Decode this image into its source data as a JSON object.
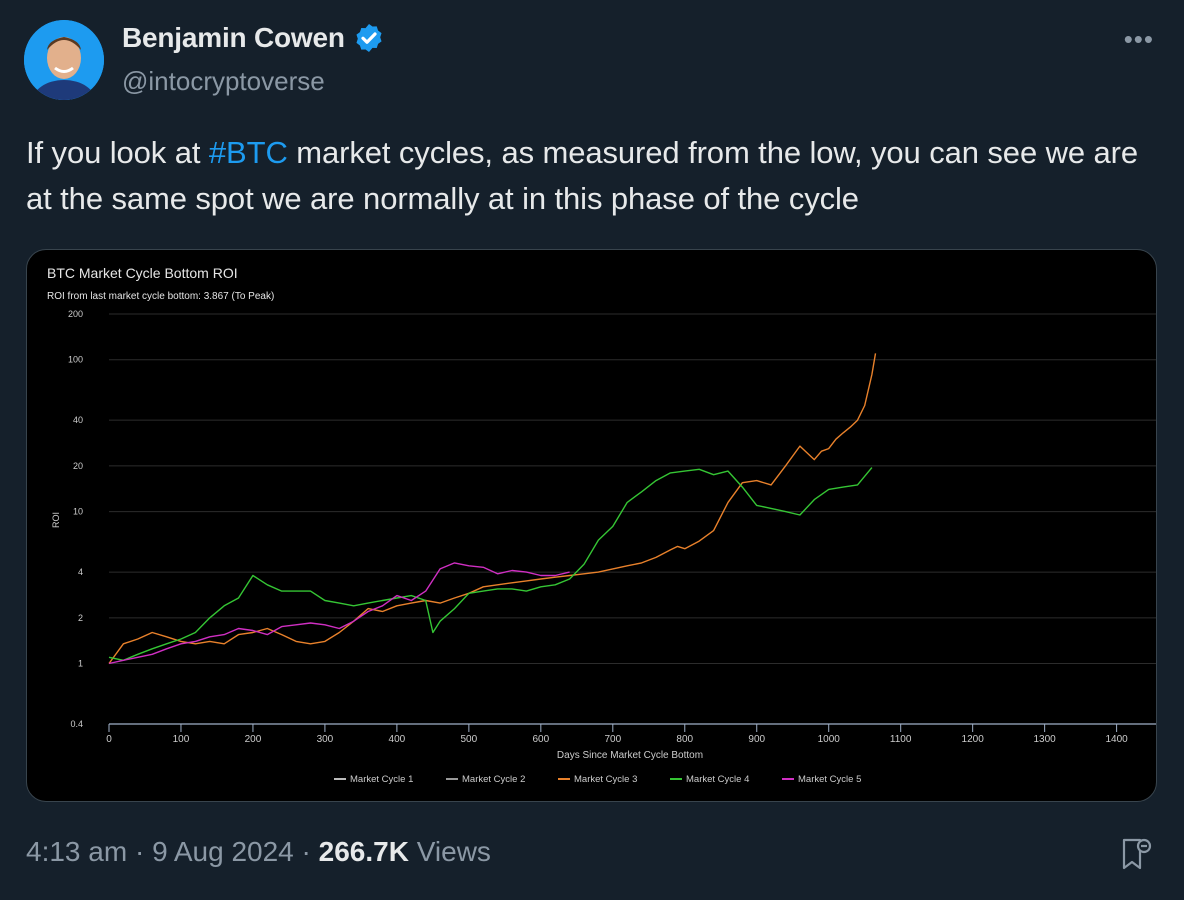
{
  "author": {
    "display_name": "Benjamin Cowen",
    "handle": "@intocryptoverse",
    "avatar_icon": "person-avatar",
    "verified_icon": "verified-badge-icon"
  },
  "more_icon": "more-options-icon",
  "tweet": {
    "text_before": "If you look at ",
    "hashtag": "#BTC",
    "text_after": " market cycles, as measured from the low, you can see we are at the same spot we are normally at in this phase of the cycle"
  },
  "meta": {
    "time": "4:13 am",
    "separator": "·",
    "date": "9 Aug 2024",
    "views_count": "266.7K",
    "views_label": "Views"
  },
  "colors": {
    "background": "#15202b",
    "accent": "#1d9bf0",
    "cycle1": "#bbbbbb",
    "cycle2": "#999999",
    "cycle3": "#e8812b",
    "cycle4": "#35c534",
    "cycle5": "#d02fc3"
  },
  "chart_data": {
    "type": "line",
    "title": "BTC Market Cycle Bottom ROI",
    "subtitle": "ROI from last market cycle bottom: 3.867 (To Peak)",
    "xlabel": "Days Since Market Cycle Bottom",
    "ylabel": "ROI",
    "y_scale": "log",
    "xlim": [
      0,
      1420
    ],
    "ylim": [
      0.4,
      200
    ],
    "x_ticks": [
      0,
      100,
      200,
      300,
      400,
      500,
      600,
      700,
      800,
      900,
      1000,
      1100,
      1200,
      1300,
      1400
    ],
    "y_ticks": [
      0.4,
      1,
      2,
      4,
      10,
      20,
      40,
      100,
      200
    ],
    "grid": true,
    "legend_position": "bottom",
    "series": [
      {
        "name": "Market Cycle 1",
        "color": "#bbbbbb",
        "x": [],
        "y": []
      },
      {
        "name": "Market Cycle 2",
        "color": "#999999",
        "x": [],
        "y": []
      },
      {
        "name": "Market Cycle 3",
        "color": "#e8812b",
        "x": [
          0,
          20,
          40,
          60,
          80,
          100,
          120,
          140,
          160,
          180,
          200,
          220,
          240,
          260,
          280,
          300,
          320,
          340,
          360,
          380,
          400,
          420,
          440,
          460,
          480,
          500,
          520,
          540,
          560,
          580,
          600,
          620,
          640,
          660,
          680,
          700,
          720,
          740,
          760,
          780,
          790,
          800,
          820,
          840,
          860,
          880,
          900,
          920,
          940,
          960,
          980,
          990,
          1000,
          1010,
          1020,
          1030,
          1040,
          1050,
          1060,
          1065
        ],
        "y": [
          1.0,
          1.35,
          1.45,
          1.6,
          1.5,
          1.4,
          1.35,
          1.4,
          1.35,
          1.55,
          1.6,
          1.7,
          1.55,
          1.4,
          1.35,
          1.4,
          1.6,
          1.9,
          2.3,
          2.2,
          2.4,
          2.5,
          2.6,
          2.5,
          2.7,
          2.9,
          3.2,
          3.3,
          3.4,
          3.5,
          3.6,
          3.7,
          3.8,
          3.9,
          4.0,
          4.2,
          4.4,
          4.6,
          5.0,
          5.6,
          5.9,
          5.7,
          6.4,
          7.5,
          11.5,
          15.5,
          16.0,
          15.0,
          20.0,
          27.0,
          22.0,
          25.0,
          26.0,
          30.0,
          33.0,
          36.0,
          40.0,
          50.0,
          80.0,
          110.0
        ]
      },
      {
        "name": "Market Cycle 4",
        "color": "#35c534",
        "x": [
          0,
          20,
          40,
          60,
          80,
          100,
          120,
          140,
          160,
          180,
          190,
          200,
          220,
          240,
          260,
          280,
          300,
          320,
          340,
          360,
          380,
          400,
          420,
          440,
          450,
          460,
          480,
          500,
          520,
          540,
          560,
          580,
          600,
          620,
          640,
          660,
          680,
          700,
          720,
          740,
          760,
          780,
          800,
          820,
          840,
          860,
          880,
          900,
          920,
          940,
          960,
          980,
          1000,
          1020,
          1040,
          1060
        ],
        "y": [
          1.1,
          1.05,
          1.15,
          1.25,
          1.35,
          1.45,
          1.6,
          2.0,
          2.4,
          2.7,
          3.2,
          3.8,
          3.3,
          3.0,
          3.0,
          3.0,
          2.6,
          2.5,
          2.4,
          2.5,
          2.6,
          2.7,
          2.8,
          2.6,
          1.6,
          1.9,
          2.3,
          2.9,
          3.0,
          3.1,
          3.1,
          3.0,
          3.2,
          3.3,
          3.6,
          4.5,
          6.5,
          8.0,
          11.5,
          13.5,
          16.0,
          18.0,
          18.5,
          19.0,
          17.5,
          18.5,
          14.5,
          11.0,
          10.5,
          10.0,
          9.5,
          12.0,
          14.0,
          14.5,
          15.0,
          19.5
        ]
      },
      {
        "name": "Market Cycle 5",
        "color": "#d02fc3",
        "x": [
          0,
          20,
          40,
          60,
          80,
          100,
          120,
          140,
          160,
          180,
          200,
          220,
          240,
          260,
          280,
          300,
          320,
          340,
          360,
          380,
          400,
          420,
          440,
          460,
          480,
          500,
          520,
          540,
          560,
          580,
          600,
          620,
          640
        ],
        "y": [
          1.0,
          1.05,
          1.1,
          1.15,
          1.25,
          1.35,
          1.4,
          1.5,
          1.55,
          1.7,
          1.65,
          1.55,
          1.75,
          1.8,
          1.85,
          1.8,
          1.7,
          1.9,
          2.2,
          2.4,
          2.8,
          2.6,
          3.0,
          4.2,
          4.6,
          4.4,
          4.3,
          3.9,
          4.1,
          4.0,
          3.8,
          3.8,
          4.0
        ]
      }
    ]
  }
}
